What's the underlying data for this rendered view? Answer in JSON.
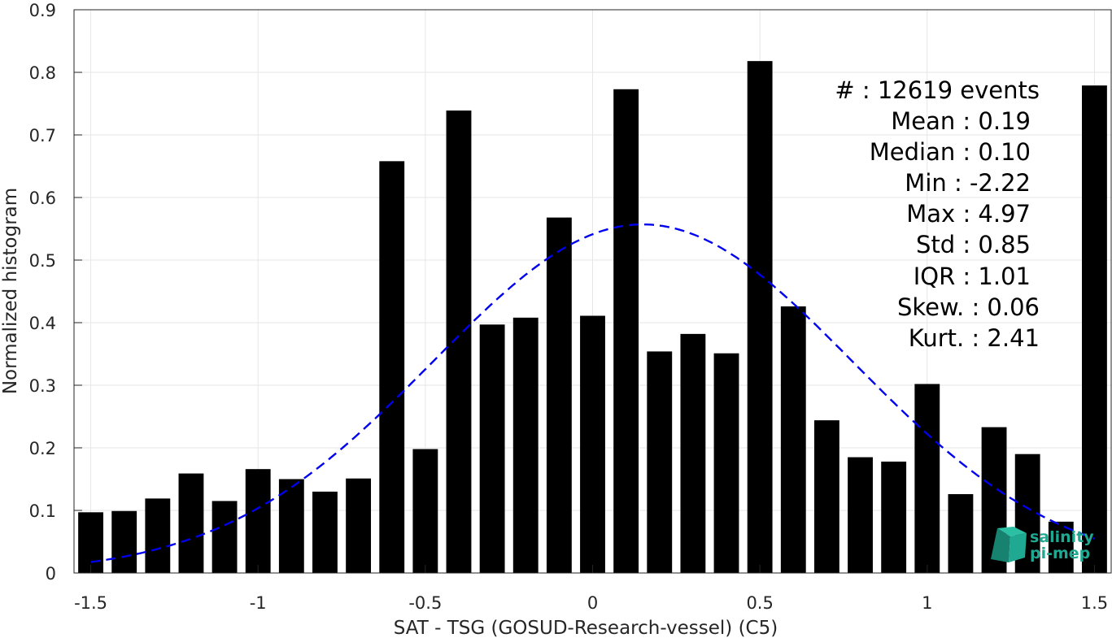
{
  "chart_data": {
    "type": "bar",
    "title": "",
    "xlabel": "SAT - TSG (GOSUD-Research-vessel) (C5)",
    "ylabel": "Normalized histogram",
    "xlim": [
      -1.55,
      1.55
    ],
    "ylim": [
      0,
      0.9
    ],
    "grid": true,
    "x_ticks": [
      -1.5,
      -1,
      -0.5,
      0,
      0.5,
      1,
      1.5
    ],
    "x_tick_labels": [
      "-1.5",
      "-1",
      "-0.5",
      "0",
      "0.5",
      "1",
      "1.5"
    ],
    "y_ticks": [
      0,
      0.1,
      0.2,
      0.3,
      0.4,
      0.5,
      0.6,
      0.7,
      0.8,
      0.9
    ],
    "y_tick_labels": [
      "0",
      "0.1",
      "0.2",
      "0.3",
      "0.4",
      "0.5",
      "0.6",
      "0.7",
      "0.8",
      "0.9"
    ],
    "bar_width": 0.075,
    "bar_color": "#000000",
    "x": [
      -1.5,
      -1.4,
      -1.3,
      -1.2,
      -1.1,
      -1.0,
      -0.9,
      -0.8,
      -0.7,
      -0.6,
      -0.5,
      -0.4,
      -0.3,
      -0.2,
      -0.1,
      0.0,
      0.1,
      0.2,
      0.3,
      0.4,
      0.5,
      0.6,
      0.7,
      0.8,
      0.9,
      1.0,
      1.1,
      1.2,
      1.3,
      1.4,
      1.5
    ],
    "values": [
      0.097,
      0.099,
      0.119,
      0.159,
      0.115,
      0.166,
      0.15,
      0.13,
      0.151,
      0.658,
      0.198,
      0.739,
      0.397,
      0.408,
      0.568,
      0.411,
      0.773,
      0.354,
      0.382,
      0.351,
      0.818,
      0.426,
      0.244,
      0.185,
      0.178,
      0.302,
      0.126,
      0.233,
      0.19,
      0.082,
      0.779
    ],
    "fit_curve": {
      "type": "gaussian",
      "mean": 0.15,
      "peak": 0.557,
      "sigma": 0.627,
      "x_range": [
        -1.5,
        1.5
      ],
      "color": "#0000ee",
      "style": "dashed"
    },
    "annotations": [
      "#  : 12619 events",
      "Mean : 0.19",
      "Median : 0.10",
      "Min : -2.22",
      "Max : 4.97",
      "Std : 0.85",
      "IQR : 1.01",
      "Skew. : 0.06",
      "Kurt. : 2.41"
    ]
  },
  "logo": {
    "line1": "salinity",
    "line2": "pi-mep",
    "color": "#1fa892"
  }
}
